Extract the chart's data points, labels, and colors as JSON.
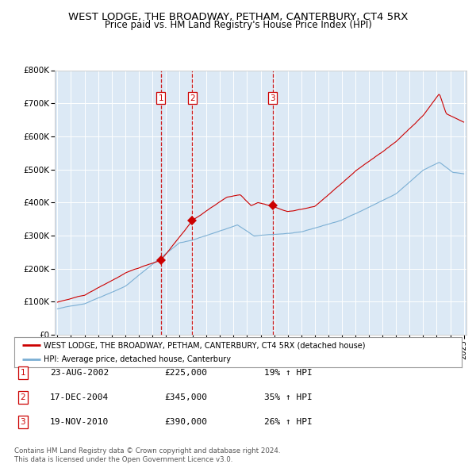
{
  "title": "WEST LODGE, THE BROADWAY, PETHAM, CANTERBURY, CT4 5RX",
  "subtitle": "Price paid vs. HM Land Registry's House Price Index (HPI)",
  "title_fontsize": 9.5,
  "subtitle_fontsize": 8.5,
  "ylim": [
    0,
    800000
  ],
  "yticks": [
    0,
    100000,
    200000,
    300000,
    400000,
    500000,
    600000,
    700000,
    800000
  ],
  "ytick_labels": [
    "£0",
    "£100K",
    "£200K",
    "£300K",
    "£400K",
    "£500K",
    "£600K",
    "£700K",
    "£800K"
  ],
  "plot_bg_color": "#dce9f5",
  "grid_color": "#ffffff",
  "hpi_line_color": "#7bafd4",
  "price_line_color": "#cc0000",
  "sale_marker_color": "#cc0000",
  "dashed_line_color": "#cc0000",
  "sale1_year": 2002.64,
  "sale1_price": 225000,
  "sale1_label": "1",
  "sale2_year": 2004.96,
  "sale2_price": 345000,
  "sale2_label": "2",
  "sale3_year": 2010.88,
  "sale3_price": 390000,
  "sale3_label": "3",
  "legend_label_price": "WEST LODGE, THE BROADWAY, PETHAM, CANTERBURY, CT4 5RX (detached house)",
  "legend_label_hpi": "HPI: Average price, detached house, Canterbury",
  "table_rows": [
    [
      "1",
      "23-AUG-2002",
      "£225,000",
      "19% ↑ HPI"
    ],
    [
      "2",
      "17-DEC-2004",
      "£345,000",
      "35% ↑ HPI"
    ],
    [
      "3",
      "19-NOV-2010",
      "£390,000",
      "26% ↑ HPI"
    ]
  ],
  "footnote1": "Contains HM Land Registry data © Crown copyright and database right 2024.",
  "footnote2": "This data is licensed under the Open Government Licence v3.0.",
  "xstart": 1995,
  "xend": 2025
}
